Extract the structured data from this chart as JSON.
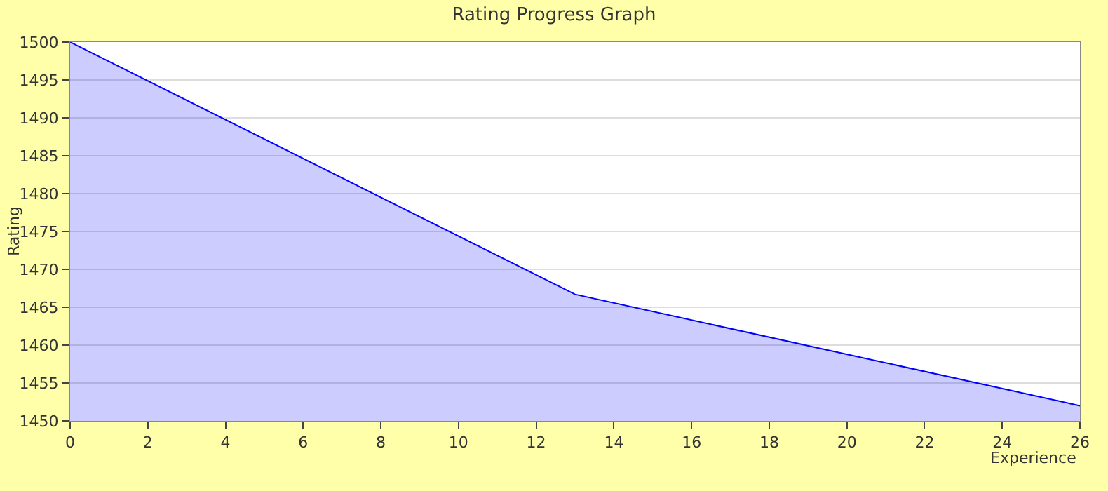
{
  "chart_data": {
    "type": "area",
    "title": "Rating Progress Graph",
    "xlabel": "Experience",
    "ylabel": "Rating",
    "x": [
      0,
      13,
      26
    ],
    "series": [
      {
        "color": "#0000ff",
        "values": [
          1500,
          1466.7,
          1452
        ]
      }
    ],
    "xlim": [
      0,
      26
    ],
    "xticks": [
      0,
      2,
      4,
      6,
      8,
      10,
      12,
      14,
      16,
      18,
      20,
      22,
      24,
      26
    ],
    "ylim": [
      1450,
      1500
    ],
    "yticks": [
      1450,
      1455,
      1460,
      1465,
      1470,
      1475,
      1480,
      1485,
      1490,
      1495,
      1500
    ],
    "grid": "y",
    "legend": false
  }
}
